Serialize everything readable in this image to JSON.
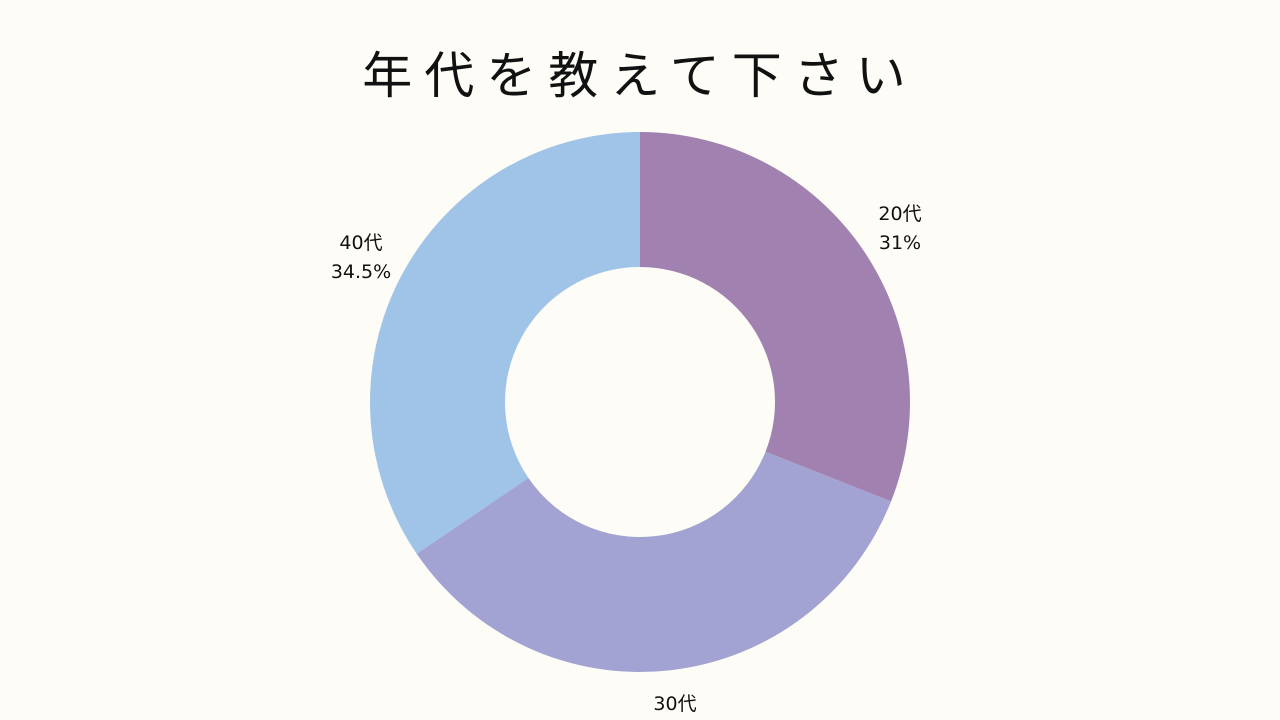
{
  "title": "年代を教えて下さい",
  "chart_data": {
    "type": "pie",
    "donut": true,
    "title": "年代を教えて下さい",
    "start_angle_deg": 0,
    "direction": "clockwise",
    "slices": [
      {
        "name": "20代",
        "value": 31,
        "value_label": "31%",
        "color": "#a181af"
      },
      {
        "name": "30代",
        "value": 34.5,
        "value_label": "",
        "color": "#a2a3d2"
      },
      {
        "name": "40代",
        "value": 34.5,
        "value_label": "34.5%",
        "color": "#a0c3e8"
      }
    ],
    "legend": "none",
    "labels": "outside"
  },
  "colors": {
    "background": "#fdfcf6",
    "text": "#111111"
  }
}
